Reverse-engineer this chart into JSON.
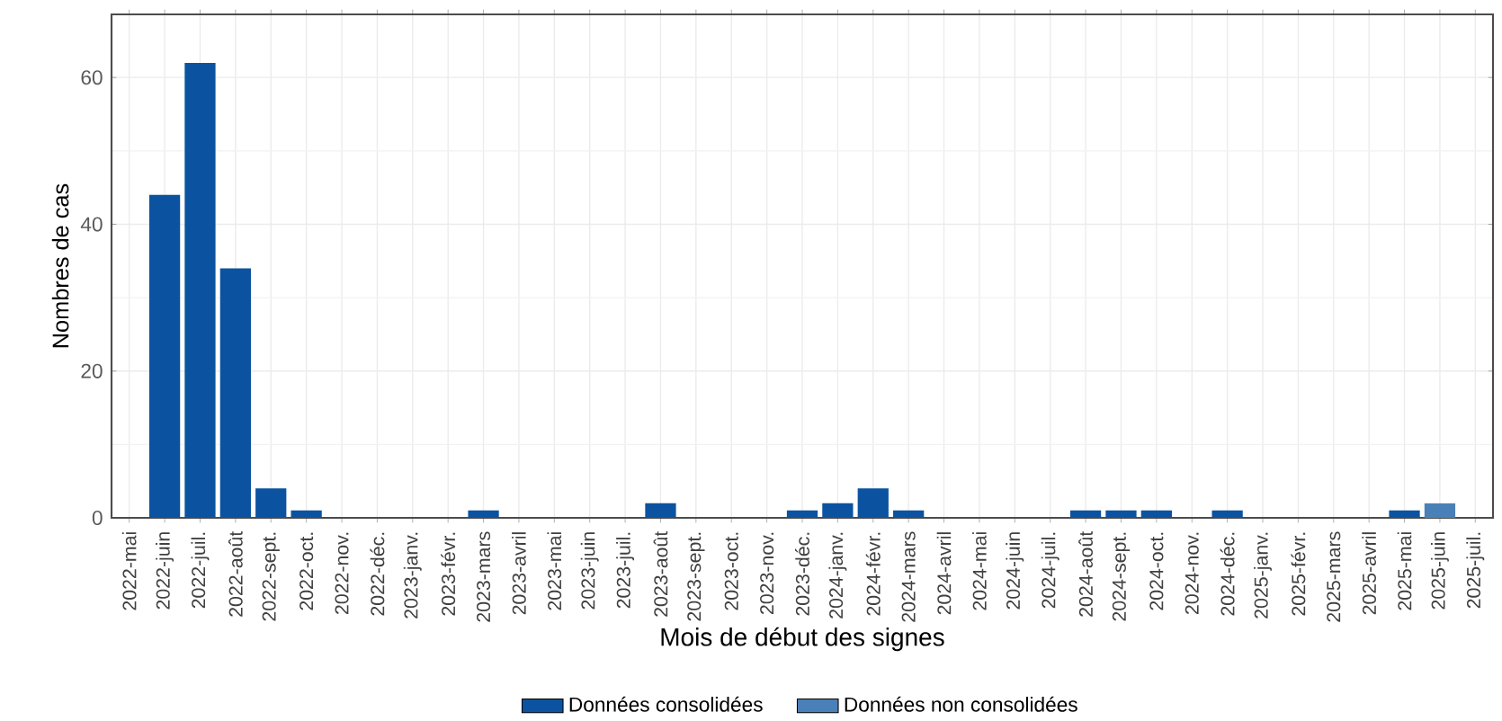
{
  "chart_data": {
    "type": "bar",
    "xlabel": "Mois de début des signes",
    "ylabel": "Nombres de cas",
    "categories": [
      "2022-mai",
      "2022-juin",
      "2022-juil.",
      "2022-août",
      "2022-sept.",
      "2022-oct.",
      "2022-nov.",
      "2022-déc.",
      "2023-janv.",
      "2023-févr.",
      "2023-mars",
      "2023-avril",
      "2023-mai",
      "2023-juin",
      "2023-juil.",
      "2023-août",
      "2023-sept.",
      "2023-oct.",
      "2023-nov.",
      "2023-déc.",
      "2024-janv.",
      "2024-févr.",
      "2024-mars",
      "2024-avril",
      "2024-mai",
      "2024-juin",
      "2024-juil.",
      "2024-août",
      "2024-sept.",
      "2024-oct.",
      "2024-nov.",
      "2024-déc.",
      "2025-janv.",
      "2025-févr.",
      "2025-mars",
      "2025-avril",
      "2025-mai",
      "2025-juin",
      "2025-juil."
    ],
    "series": [
      {
        "name": "Données consolidées",
        "color": "#0b53a0",
        "values": [
          null,
          44,
          62,
          34,
          4,
          1,
          null,
          null,
          null,
          null,
          1,
          null,
          null,
          null,
          null,
          2,
          null,
          null,
          null,
          1,
          2,
          4,
          1,
          null,
          null,
          null,
          null,
          1,
          1,
          1,
          null,
          1,
          null,
          null,
          null,
          null,
          1,
          null,
          null
        ]
      },
      {
        "name": "Données non consolidées",
        "color": "#4a80b8",
        "values": [
          null,
          null,
          null,
          null,
          null,
          null,
          null,
          null,
          null,
          null,
          null,
          null,
          null,
          null,
          null,
          null,
          null,
          null,
          null,
          null,
          null,
          null,
          null,
          null,
          null,
          null,
          null,
          null,
          null,
          null,
          null,
          null,
          null,
          null,
          null,
          null,
          null,
          2,
          null
        ]
      }
    ],
    "ylim": [
      0,
      68.6
    ],
    "yticks": [
      0,
      20,
      40,
      60
    ],
    "grid": true,
    "legend": "bottom"
  }
}
